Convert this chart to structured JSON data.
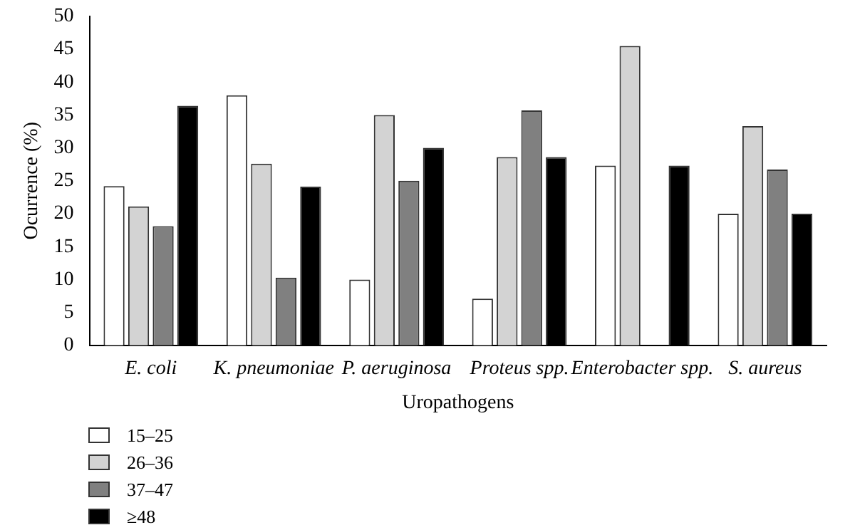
{
  "chart_data": {
    "type": "bar",
    "xlabel": "Uropathogens",
    "ylabel": "Ocurrence (%)",
    "categories": [
      "E. coli",
      "K. pneumoniae",
      "P. aeruginosa",
      "Proteus spp.",
      "Enterobacter spp.",
      "S. aureus"
    ],
    "series": [
      {
        "name": "15–25",
        "color": "#ffffff",
        "values": [
          24.2,
          38,
          10,
          7.1,
          27.3,
          20
        ]
      },
      {
        "name": "26–36",
        "color": "#d3d3d3",
        "values": [
          21.1,
          27.6,
          35,
          28.6,
          45.5,
          33.3
        ]
      },
      {
        "name": "37–47",
        "color": "#808080",
        "values": [
          18.1,
          10.3,
          25,
          35.7,
          0,
          26.7
        ]
      },
      {
        "name": "≥48",
        "color": "#000000",
        "values": [
          36.4,
          24.1,
          30,
          28.6,
          27.3,
          20
        ]
      }
    ],
    "ylim": [
      0,
      50
    ],
    "yticks": [
      0,
      5,
      10,
      15,
      20,
      25,
      30,
      35,
      40,
      45,
      50
    ],
    "grid": false,
    "legend": "bottom left"
  }
}
